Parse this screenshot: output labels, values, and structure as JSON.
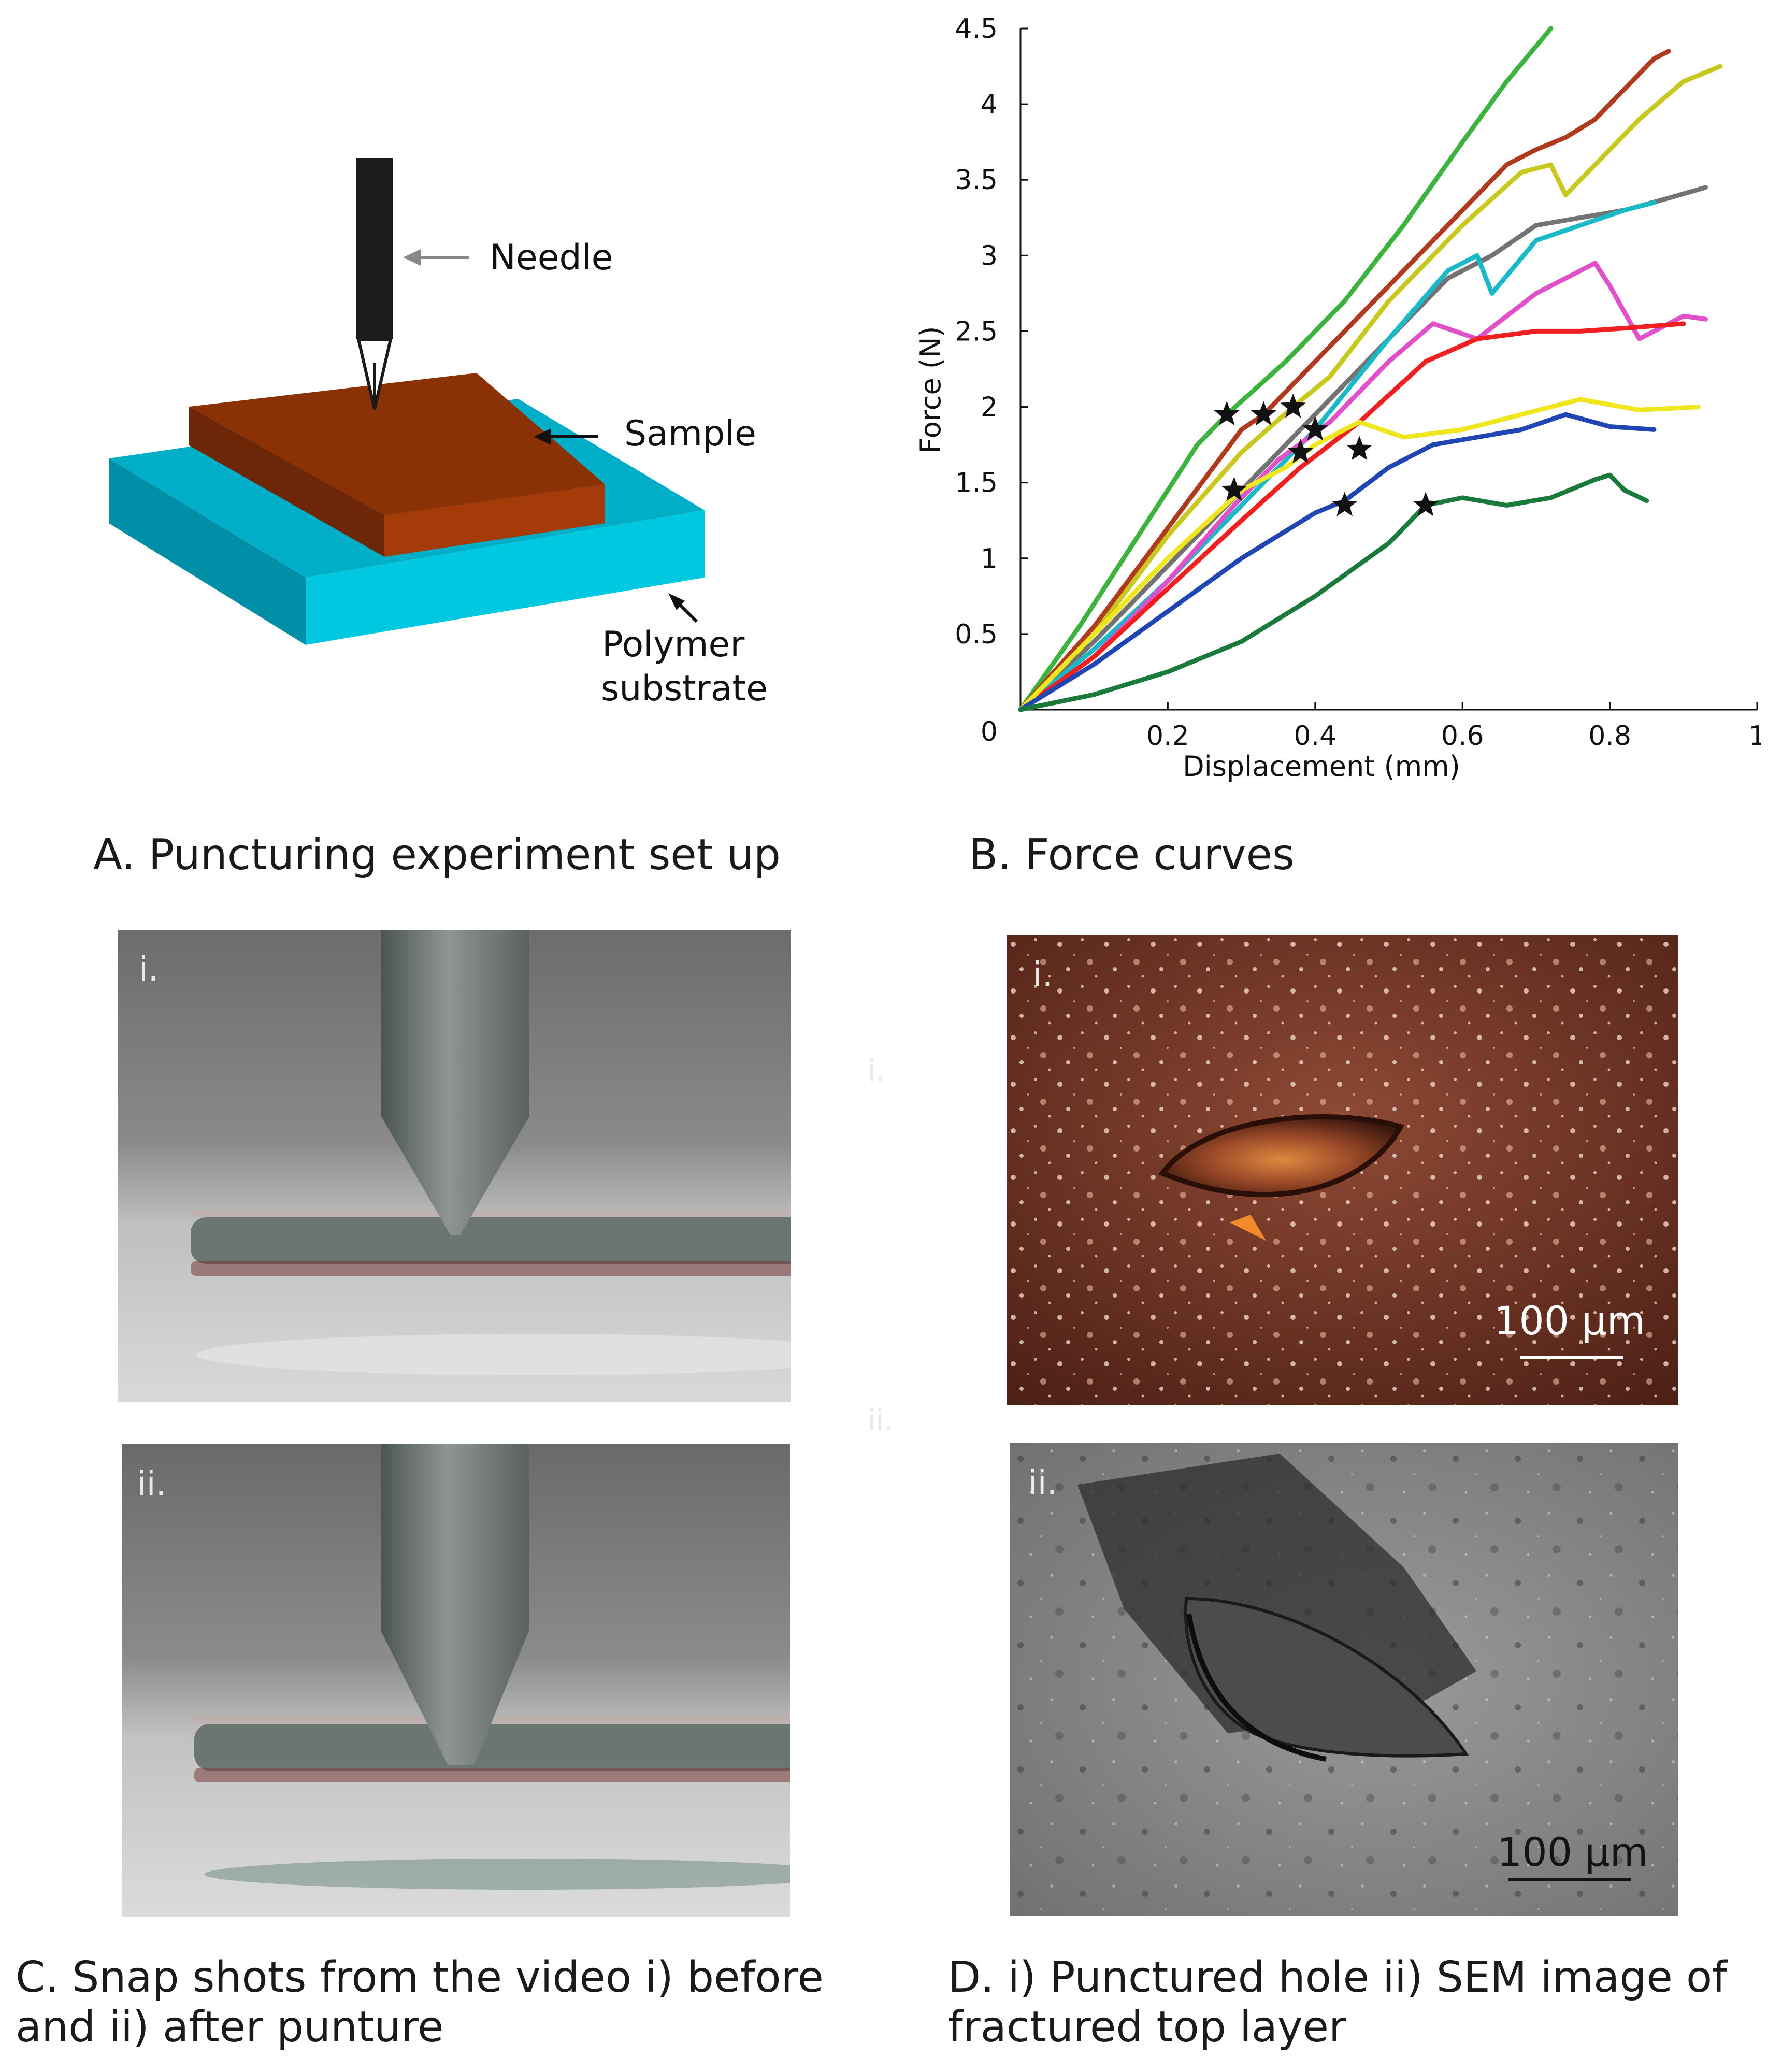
{
  "panelA": {
    "caption": "A. Puncturing experiment set up",
    "labels": {
      "needle": "Needle",
      "sample": "Sample",
      "substrate_line1": "Polymer",
      "substrate_line2": "substrate"
    },
    "colors": {
      "needle": "#1b1b1b",
      "sample": "#8a3206",
      "substrate": "#00aec8"
    }
  },
  "panelB": {
    "caption": "B. Force curves",
    "chart_data": {
      "type": "line",
      "xlabel": "Displacement (mm)",
      "ylabel": "Force (N)",
      "xlim": [
        0,
        1
      ],
      "ylim": [
        0,
        4.5
      ],
      "xticks": [
        0.2,
        0.4,
        0.6,
        0.8,
        1
      ],
      "xtick_labels": [
        "0.2",
        "0.4",
        "0.6",
        "0.8",
        "1"
      ],
      "yticks": [
        0.5,
        1,
        1.5,
        2,
        2.5,
        3,
        3.5,
        4,
        4.5
      ],
      "ytick_labels": [
        "0.5",
        "1",
        "1.5",
        "2",
        "2.5",
        "3",
        "3.5",
        "4",
        "4.5"
      ],
      "origin_label": "0",
      "grid": false,
      "series": [
        {
          "color": "#3cb33c",
          "x": [
            0,
            0.08,
            0.16,
            0.24,
            0.28,
            0.36,
            0.44,
            0.52,
            0.6,
            0.66,
            0.72
          ],
          "y": [
            0,
            0.55,
            1.15,
            1.75,
            1.95,
            2.3,
            2.7,
            3.2,
            3.75,
            4.15,
            4.5
          ]
        },
        {
          "color": "#b03a1e",
          "x": [
            0,
            0.1,
            0.2,
            0.3,
            0.33,
            0.4,
            0.5,
            0.6,
            0.66,
            0.7,
            0.74,
            0.78,
            0.82,
            0.86,
            0.88
          ],
          "y": [
            0,
            0.55,
            1.2,
            1.85,
            1.95,
            2.3,
            2.8,
            3.3,
            3.6,
            3.7,
            3.78,
            3.9,
            4.1,
            4.3,
            4.35
          ]
        },
        {
          "color": "#c8c81e",
          "x": [
            0,
            0.1,
            0.2,
            0.3,
            0.37,
            0.42,
            0.5,
            0.6,
            0.68,
            0.72,
            0.74,
            0.78,
            0.84,
            0.9,
            0.95
          ],
          "y": [
            0,
            0.5,
            1.15,
            1.7,
            2.0,
            2.2,
            2.7,
            3.2,
            3.55,
            3.6,
            3.4,
            3.6,
            3.9,
            4.15,
            4.25
          ]
        },
        {
          "color": "#737373",
          "x": [
            0,
            0.1,
            0.2,
            0.3,
            0.4,
            0.5,
            0.58,
            0.64,
            0.7,
            0.76,
            0.82,
            0.88,
            0.93
          ],
          "y": [
            0,
            0.45,
            0.95,
            1.45,
            1.95,
            2.45,
            2.85,
            3.0,
            3.2,
            3.25,
            3.3,
            3.38,
            3.45
          ]
        },
        {
          "color": "#19b9c8",
          "x": [
            0,
            0.1,
            0.2,
            0.3,
            0.4,
            0.5,
            0.58,
            0.62,
            0.64,
            0.7,
            0.76,
            0.82,
            0.86
          ],
          "y": [
            0,
            0.4,
            0.85,
            1.35,
            1.85,
            2.45,
            2.9,
            3.0,
            2.75,
            3.1,
            3.2,
            3.3,
            3.35
          ]
        },
        {
          "color": "#e050c8",
          "x": [
            0,
            0.1,
            0.2,
            0.29,
            0.35,
            0.42,
            0.5,
            0.56,
            0.62,
            0.7,
            0.78,
            0.8,
            0.84,
            0.9,
            0.93
          ],
          "y": [
            0,
            0.35,
            0.85,
            1.35,
            1.65,
            1.9,
            2.3,
            2.55,
            2.45,
            2.75,
            2.95,
            2.8,
            2.45,
            2.6,
            2.58
          ]
        },
        {
          "color": "#f02020",
          "x": [
            0,
            0.1,
            0.2,
            0.3,
            0.38,
            0.46,
            0.55,
            0.62,
            0.7,
            0.76,
            0.82,
            0.9
          ],
          "y": [
            0,
            0.35,
            0.8,
            1.25,
            1.6,
            1.9,
            2.3,
            2.45,
            2.5,
            2.5,
            2.52,
            2.55
          ]
        },
        {
          "color": "#f0e61e",
          "x": [
            0,
            0.1,
            0.2,
            0.3,
            0.36,
            0.4,
            0.46,
            0.52,
            0.6,
            0.68,
            0.76,
            0.84,
            0.92
          ],
          "y": [
            0,
            0.5,
            1.0,
            1.45,
            1.6,
            1.75,
            1.9,
            1.8,
            1.85,
            1.95,
            2.05,
            1.98,
            2.0
          ]
        },
        {
          "color": "#2046b4",
          "x": [
            0,
            0.1,
            0.2,
            0.3,
            0.4,
            0.44,
            0.5,
            0.56,
            0.62,
            0.68,
            0.74,
            0.8,
            0.86
          ],
          "y": [
            0,
            0.3,
            0.65,
            1.0,
            1.3,
            1.38,
            1.6,
            1.75,
            1.8,
            1.85,
            1.95,
            1.87,
            1.85
          ]
        },
        {
          "color": "#1a7a3c",
          "x": [
            0,
            0.1,
            0.2,
            0.3,
            0.4,
            0.5,
            0.55,
            0.6,
            0.66,
            0.72,
            0.78,
            0.8,
            0.82,
            0.85
          ],
          "y": [
            0,
            0.1,
            0.25,
            0.45,
            0.75,
            1.1,
            1.35,
            1.4,
            1.35,
            1.4,
            1.52,
            1.55,
            1.45,
            1.38
          ]
        }
      ],
      "markers": {
        "symbol": "star",
        "points": [
          [
            0.28,
            1.95
          ],
          [
            0.33,
            1.95
          ],
          [
            0.37,
            2.0
          ],
          [
            0.4,
            1.85
          ],
          [
            0.29,
            1.45
          ],
          [
            0.38,
            1.7
          ],
          [
            0.46,
            1.72
          ],
          [
            0.44,
            1.35
          ],
          [
            0.55,
            1.35
          ]
        ]
      }
    }
  },
  "panelC": {
    "caption_line1": "C. Snap shots from the video i) before",
    "caption_line2": "and ii) after punture",
    "tag_before": "i.",
    "tag_after": "ii."
  },
  "panelD": {
    "caption_line1": "D. i) Punctured hole ii) SEM image of",
    "caption_line2": "fractured top layer",
    "tag_optical": "i.",
    "tag_sem": "ii.",
    "scale_optical": "100 µm",
    "scale_sem": "100 µm",
    "ghost_i": "i.",
    "ghost_ii": "ii."
  }
}
